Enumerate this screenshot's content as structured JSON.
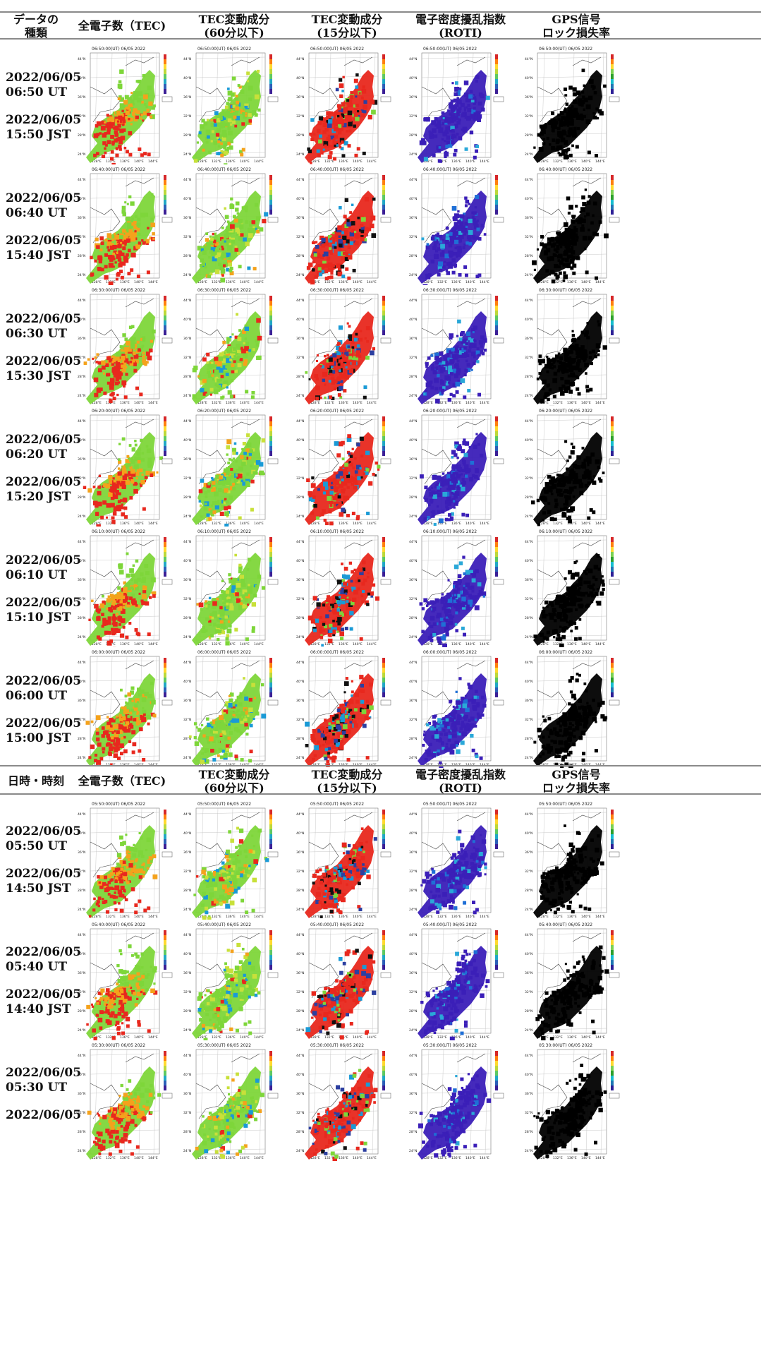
{
  "sections": [
    {
      "headers": [
        {
          "l1": "データの",
          "l2": "種類"
        },
        {
          "l1": "全電子数（TEC)",
          "l2": ""
        },
        {
          "l1": "TEC変動成分",
          "l2": "(60分以下)"
        },
        {
          "l1": "TEC変動成分",
          "l2": "(15分以下)"
        },
        {
          "l1": "電子密度擾乱指数",
          "l2": "(ROTI)"
        },
        {
          "l1": "GPS信号",
          "l2": "ロック損失率"
        }
      ],
      "rows": [
        {
          "ut": "2022/06/05 06:50 UT",
          "jst": "2022/06/05 15:50 JST",
          "map_title": "06:50:00(UT) 06/05 2022"
        },
        {
          "ut": "2022/06/05 06:40 UT",
          "jst": "2022/06/05 15:40 JST",
          "map_title": "06:40:00(UT) 06/05 2022"
        },
        {
          "ut": "2022/06/05 06:30 UT",
          "jst": "2022/06/05 15:30 JST",
          "map_title": "06:30:00(UT) 06/05 2022"
        },
        {
          "ut": "2022/06/05 06:20 UT",
          "jst": "2022/06/05 15:20 JST",
          "map_title": "06:20:00(UT) 06/05 2022"
        },
        {
          "ut": "2022/06/05 06:10 UT",
          "jst": "2022/06/05 15:10 JST",
          "map_title": "06:10:00(UT) 06/05 2022"
        },
        {
          "ut": "2022/06/05 06:00 UT",
          "jst": "2022/06/05 15:00 JST",
          "map_title": "06:00:00(UT) 06/05 2022"
        }
      ]
    },
    {
      "headers": [
        {
          "l1": "日時・時刻",
          "l2": ""
        },
        {
          "l1": "全電子数（TEC)",
          "l2": ""
        },
        {
          "l1": "TEC変動成分",
          "l2": "(60分以下)"
        },
        {
          "l1": "TEC変動成分",
          "l2": "(15分以下)"
        },
        {
          "l1": "電子密度擾乱指数",
          "l2": "(ROTI)"
        },
        {
          "l1": "GPS信号",
          "l2": "ロック損失率"
        }
      ],
      "rows": [
        {
          "ut": "2022/06/05 05:50 UT",
          "jst": "2022/06/05 14:50 JST",
          "map_title": "05:50:00(UT) 06/05 2022"
        },
        {
          "ut": "2022/06/05 05:40 UT",
          "jst": "2022/06/05 14:40 JST",
          "map_title": "05:40:00(UT) 06/05 2022"
        },
        {
          "ut": "2022/06/05 05:30 UT",
          "jst": "2022/06/05",
          "map_title": "05:30:00(UT) 06/05 2022"
        }
      ]
    }
  ],
  "map_axis": {
    "lat_labels": [
      "44°N",
      "40°N",
      "36°N",
      "32°N",
      "28°N",
      "24°N"
    ],
    "lon_labels": [
      "128°E",
      "132°E",
      "136°E",
      "140°E",
      "144°E"
    ]
  },
  "map_types": [
    "tec",
    "dtec60",
    "dtec15",
    "roti",
    "lol"
  ],
  "colors": {
    "rule": "#8a8a8a",
    "tec_high": "#e8281e",
    "tec_mid": "#f4a21c",
    "tec_low": "#7ed63a",
    "roti_base": "#3b1fb8",
    "lol": "#000000",
    "dtec_noise": "#1a9ad6"
  }
}
